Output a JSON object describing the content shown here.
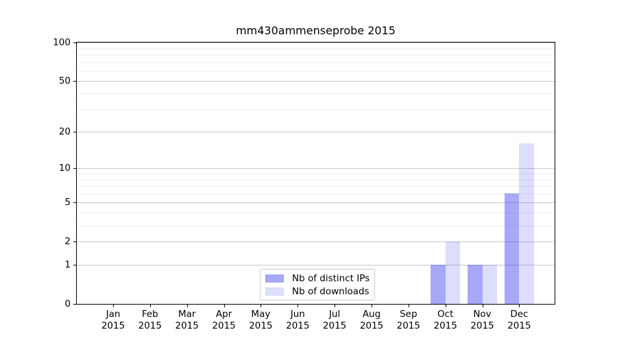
{
  "chart_data": {
    "type": "bar",
    "title": "mm430ammenseprobe 2015",
    "categories": [
      {
        "month": "Jan",
        "year": "2015"
      },
      {
        "month": "Feb",
        "year": "2015"
      },
      {
        "month": "Mar",
        "year": "2015"
      },
      {
        "month": "Apr",
        "year": "2015"
      },
      {
        "month": "May",
        "year": "2015"
      },
      {
        "month": "Jun",
        "year": "2015"
      },
      {
        "month": "Jul",
        "year": "2015"
      },
      {
        "month": "Aug",
        "year": "2015"
      },
      {
        "month": "Sep",
        "year": "2015"
      },
      {
        "month": "Oct",
        "year": "2015"
      },
      {
        "month": "Nov",
        "year": "2015"
      },
      {
        "month": "Dec",
        "year": "2015"
      }
    ],
    "series": [
      {
        "name": "Nb of distinct IPs",
        "color": "rgba(20,20,235,0.37)",
        "color_hex": "#a9a9f8",
        "values": [
          0,
          0,
          0,
          0,
          0,
          0,
          0,
          0,
          0,
          1,
          1,
          6
        ]
      },
      {
        "name": "Nb of downloads",
        "color": "rgba(20,20,235,0.145)",
        "color_hex": "#dcdcfa",
        "values": [
          0,
          0,
          0,
          0,
          0,
          0,
          0,
          0,
          0,
          2,
          1,
          16
        ]
      }
    ],
    "y_axis": {
      "scale": "log1p",
      "ylim": [
        0,
        100
      ],
      "major_ticks": [
        0,
        1,
        2,
        5,
        10,
        20,
        50,
        100
      ],
      "minor_gridlines": [
        3,
        4,
        6,
        7,
        8,
        9,
        30,
        40,
        60,
        70,
        80,
        90
      ]
    },
    "xlabel": "",
    "ylabel": "",
    "grid": "on",
    "legend_position": "lower center"
  },
  "colors": {
    "background": "#ffffff",
    "spine": "#000000",
    "major_grid": "#c9c9c9",
    "minor_grid": "#ededed"
  }
}
